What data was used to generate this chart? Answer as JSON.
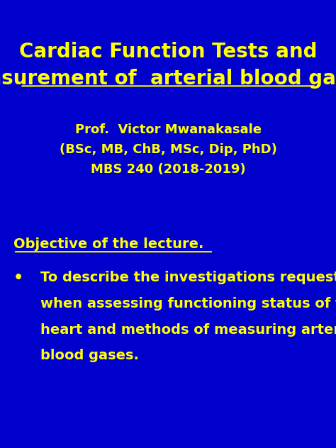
{
  "background_color": "#0000CC",
  "title_line1": "Cardiac Function Tests and",
  "title_line2": "Measurement of  arterial blood gases.",
  "title_color": "#FFFF00",
  "title_fontsize": 20,
  "author_line1": "Prof.  Victor Mwanakasale",
  "author_line2": "(BSc, MB, ChB, MSc, Dip, PhD)",
  "author_line3": "MBS 240 (2018-2019)",
  "author_color": "#FFFF00",
  "author_fontsize": 13,
  "objective_label": "Objective of the lecture.",
  "objective_color": "#FFFF00",
  "objective_fontsize": 14,
  "bullet_color": "#FFFF00",
  "bullet_fontsize": 14,
  "bullet_lines": [
    "To describe the investigations requested",
    "when assessing functioning status of the",
    "heart and methods of measuring arterial",
    "blood gases."
  ]
}
